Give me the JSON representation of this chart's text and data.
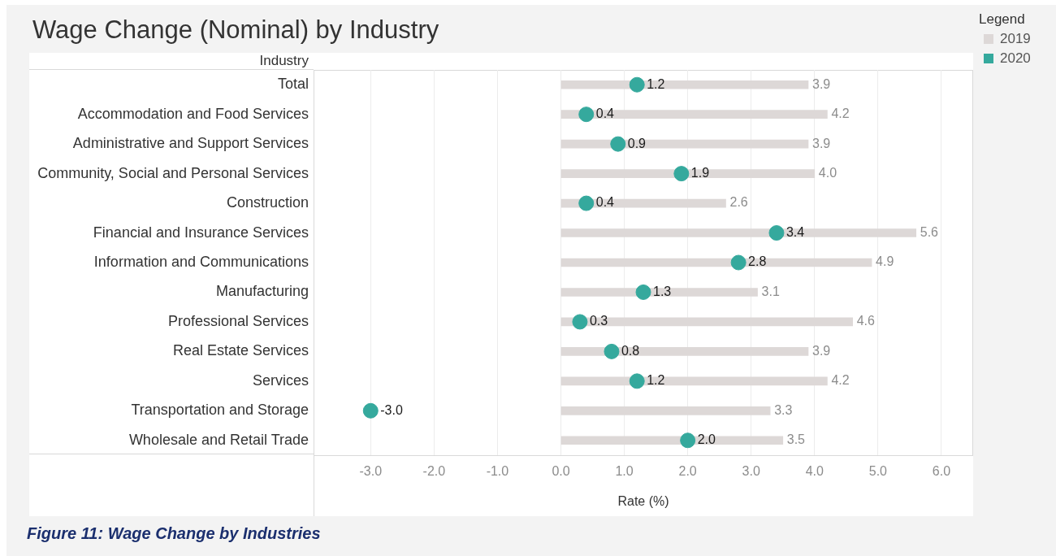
{
  "chart_data": {
    "type": "bar",
    "title": "Wage Change (Nominal) by Industry",
    "ylabel": "Industry",
    "xlabel": "Rate (%)",
    "legend_title": "Legend",
    "annotations": [
      "Figure 11: Wage Change by Industries"
    ],
    "orientation": "horizontal",
    "categories": [
      "Total",
      "Accommodation and Food Services",
      "Administrative and Support Services",
      "Community, Social and Personal Services",
      "Construction",
      "Financial and Insurance Services",
      "Information and Communications",
      "Manufacturing",
      "Professional Services",
      "Real Estate Services",
      "Services",
      "Transportation and Storage",
      "Wholesale and Retail Trade"
    ],
    "series": [
      {
        "name": "2019",
        "color": "#ddd8d7",
        "values": [
          3.9,
          4.2,
          3.9,
          4.0,
          2.6,
          5.6,
          4.9,
          3.1,
          4.6,
          3.9,
          4.2,
          3.3,
          3.5
        ],
        "value_labels": [
          "3.9",
          "4.2",
          "3.9",
          "4.0",
          "2.6",
          "5.6",
          "4.9",
          "3.1",
          "4.6",
          "3.9",
          "4.2",
          "3.3",
          "3.5"
        ]
      },
      {
        "name": "2020",
        "type": "scatter",
        "color": "#35a99d",
        "values": [
          1.2,
          0.4,
          0.9,
          1.9,
          0.4,
          3.4,
          2.8,
          1.3,
          0.3,
          0.8,
          1.2,
          -3.0,
          2.0
        ],
        "value_labels": [
          "1.2",
          "0.4",
          "0.9",
          "1.9",
          "0.4",
          "3.4",
          "2.8",
          "1.3",
          "0.3",
          "0.8",
          "1.2",
          "-3.0",
          "2.0"
        ]
      }
    ],
    "xlim": [
      -3.9,
      6.5
    ],
    "xticks": [
      {
        "value": -3,
        "label": "-3.0"
      },
      {
        "value": -2,
        "label": "-2.0"
      },
      {
        "value": -1,
        "label": "-1.0"
      },
      {
        "value": 0,
        "label": "0.0"
      },
      {
        "value": 1,
        "label": "1.0"
      },
      {
        "value": 2,
        "label": "2.0"
      },
      {
        "value": 3,
        "label": "3.0"
      },
      {
        "value": 4,
        "label": "4.0"
      },
      {
        "value": 5,
        "label": "5.0"
      },
      {
        "value": 6,
        "label": "6.0"
      }
    ],
    "grid": "x",
    "legend": "top right",
    "marker": "circle"
  }
}
